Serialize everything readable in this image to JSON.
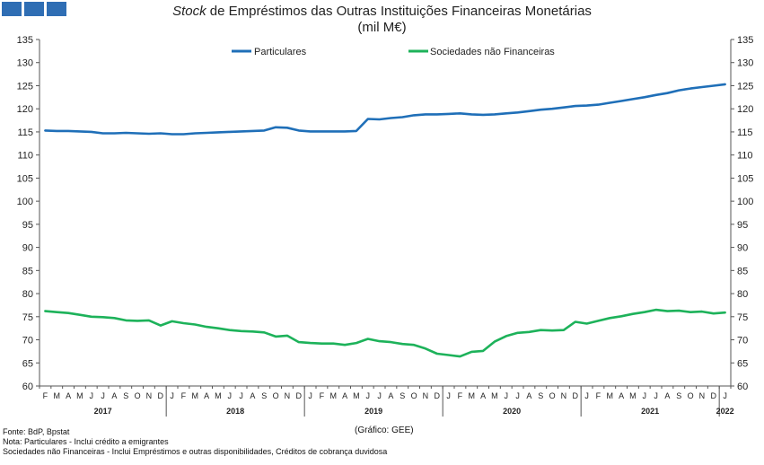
{
  "header": {
    "title_italic": "Stock",
    "title_rest": " de Empréstimos das Outras Instituições Financeiras Monetárias",
    "unit": "(mil M€)"
  },
  "footer": {
    "source": "Fonte: BdP, Bpstat",
    "note": "Nota: Particulares - Inclui crédito a emigrantes",
    "note2": "Sociedades não Financeiras - Inclui Empréstimos e outras disponibilidades, Créditos de cobrança duvidosa",
    "credit": "(Gráfico: GEE)"
  },
  "colors": {
    "corner": "#2f6eb4",
    "particulares": "#1f6fb8",
    "sociedades": "#1db25a",
    "axis": "#555555"
  },
  "chart_data": {
    "type": "line",
    "title": "Stock de Empréstimos das Outras Instituições Financeiras Monetárias",
    "ylabel": "(mil M€)",
    "ylim": [
      60,
      135
    ],
    "yticks": [
      60,
      65,
      70,
      75,
      80,
      85,
      90,
      95,
      100,
      105,
      110,
      115,
      120,
      125,
      130,
      135
    ],
    "grid": false,
    "legend": "top-center",
    "x_months": [
      "F",
      "M",
      "A",
      "M",
      "J",
      "J",
      "A",
      "S",
      "O",
      "N",
      "D",
      "J",
      "F",
      "M",
      "A",
      "M",
      "J",
      "J",
      "A",
      "S",
      "O",
      "N",
      "D",
      "J",
      "F",
      "M",
      "A",
      "M",
      "J",
      "J",
      "A",
      "S",
      "O",
      "N",
      "D",
      "J",
      "F",
      "M",
      "A",
      "M",
      "J",
      "J",
      "A",
      "S",
      "O",
      "N",
      "D",
      "J",
      "F",
      "M",
      "A",
      "M",
      "J",
      "J",
      "A",
      "S",
      "O",
      "N",
      "D",
      "J"
    ],
    "years": [
      {
        "label": "2017",
        "start": 0,
        "end": 10
      },
      {
        "label": "2018",
        "start": 11,
        "end": 22
      },
      {
        "label": "2019",
        "start": 23,
        "end": 34
      },
      {
        "label": "2020",
        "start": 35,
        "end": 46
      },
      {
        "label": "2021",
        "start": 47,
        "end": 58
      },
      {
        "label": "2022",
        "start": 59,
        "end": 59
      }
    ],
    "series": [
      {
        "name": "Particulares",
        "color": "#1f6fb8",
        "values": [
          115.3,
          115.2,
          115.2,
          115.1,
          115.0,
          114.7,
          114.7,
          114.8,
          114.7,
          114.6,
          114.7,
          114.5,
          114.5,
          114.7,
          114.8,
          114.9,
          115.0,
          115.1,
          115.2,
          115.3,
          116.0,
          115.9,
          115.3,
          115.1,
          115.1,
          115.1,
          115.1,
          115.2,
          117.8,
          117.7,
          118.0,
          118.2,
          118.6,
          118.8,
          118.8,
          118.9,
          119.0,
          118.8,
          118.7,
          118.8,
          119.0,
          119.2,
          119.5,
          119.8,
          120.0,
          120.3,
          120.6,
          120.7,
          120.9,
          121.3,
          121.7,
          122.1,
          122.5,
          123.0,
          123.4,
          124.0,
          124.4,
          124.7,
          125.0,
          125.3
        ]
      },
      {
        "name": "Sociedades não Financeiras",
        "color": "#1db25a",
        "values": [
          76.2,
          76.0,
          75.8,
          75.4,
          75.0,
          74.9,
          74.7,
          74.2,
          74.1,
          74.2,
          73.1,
          74.0,
          73.6,
          73.3,
          72.8,
          72.5,
          72.1,
          71.9,
          71.8,
          71.6,
          70.7,
          70.9,
          69.5,
          69.3,
          69.2,
          69.2,
          68.9,
          69.3,
          70.2,
          69.7,
          69.5,
          69.1,
          68.9,
          68.1,
          67.0,
          66.7,
          66.4,
          67.4,
          67.6,
          69.6,
          70.8,
          71.5,
          71.7,
          72.1,
          72.0,
          72.1,
          73.9,
          73.5,
          74.1,
          74.7,
          75.1,
          75.6,
          76.0,
          76.5,
          76.2,
          76.3,
          76.0,
          76.1,
          75.7,
          75.9
        ]
      }
    ]
  }
}
